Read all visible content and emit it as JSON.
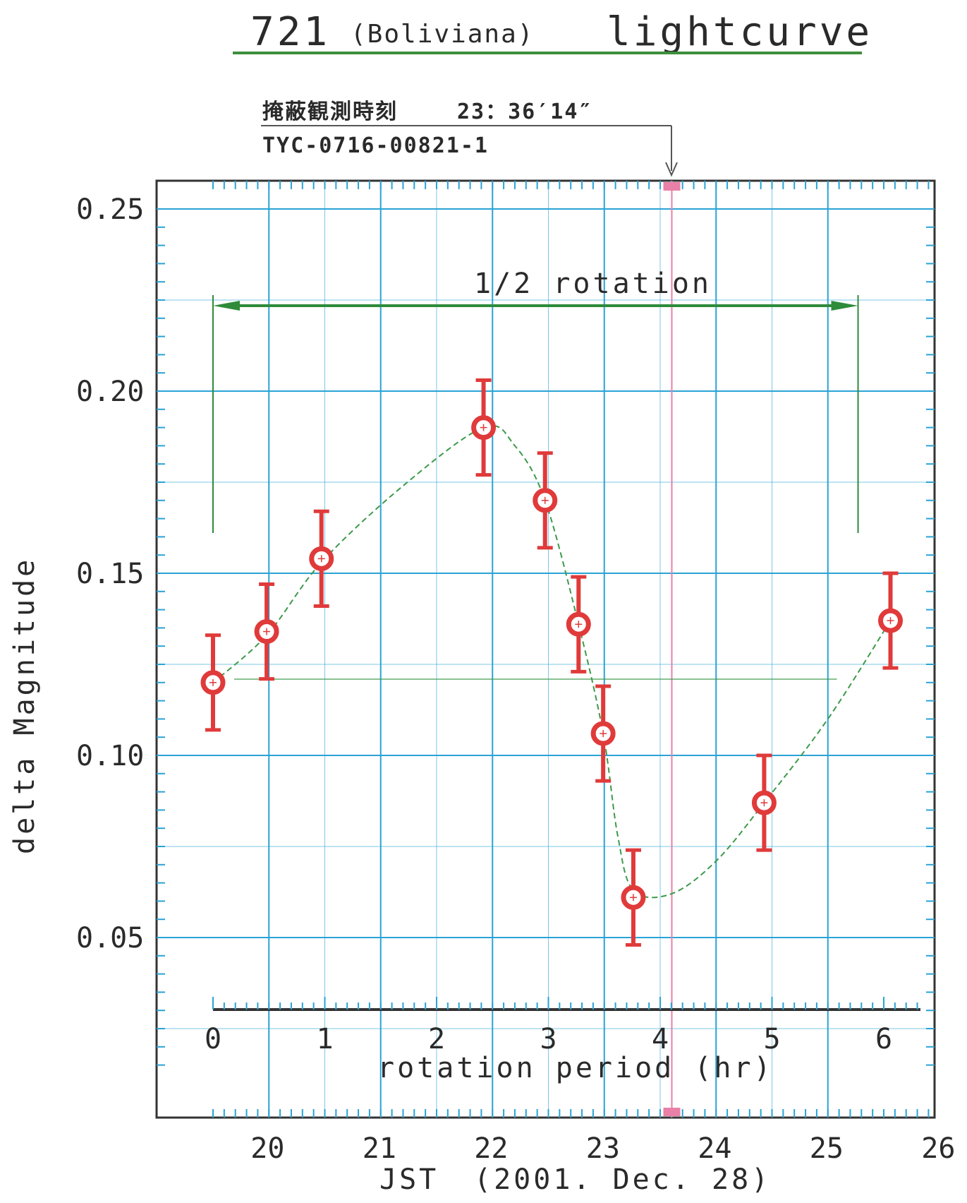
{
  "title": {
    "number": "721",
    "name": "(Boliviana)",
    "word": "lightcurve"
  },
  "annotation": {
    "occultation_label": "掩蔽観測時刻",
    "occultation_time": "23：36′14″",
    "star_id": "TYC-0716-00821-1",
    "rotation_label": "1/2 rotation"
  },
  "colors": {
    "grid": "#2aa3d6",
    "points": "#e03a3a",
    "fit_curve": "#3d9a4a",
    "rotation_arrow": "#2e8b3a",
    "occultation_line": "#e880a8",
    "frame": "#333333"
  },
  "chart_data": {
    "type": "scatter",
    "ylabel": "delta Magnitude",
    "xlabel_bottom": "JST",
    "xlabel_bottom_date": "(2001. Dec. 28)",
    "xlabel_inner": "rotation period (hr)",
    "ylim": [
      0.01,
      0.26
    ],
    "jst_lim": [
      19.5,
      26.0
    ],
    "jst_ticks": [
      "20",
      "21",
      "22",
      "23",
      "24",
      "25",
      "26"
    ],
    "rotation_ticks": [
      "0",
      "1",
      "2",
      "3",
      "4",
      "5",
      "6"
    ],
    "y_ticks": [
      "0.25",
      "0.20",
      "0.15",
      "0.10",
      "0.05"
    ],
    "y_tick_values": [
      0.25,
      0.2,
      0.15,
      0.1,
      0.05
    ],
    "rotation_origin_jst": 19.5,
    "occultation_jst": 23.604,
    "half_rotation_jst": [
      19.5,
      25.27
    ],
    "grid": true,
    "points": [
      {
        "jst": 19.5,
        "y": 0.12,
        "err": 0.013
      },
      {
        "jst": 19.98,
        "y": 0.134,
        "err": 0.013
      },
      {
        "jst": 20.47,
        "y": 0.154,
        "err": 0.013
      },
      {
        "jst": 21.92,
        "y": 0.19,
        "err": 0.013
      },
      {
        "jst": 22.47,
        "y": 0.17,
        "err": 0.013
      },
      {
        "jst": 22.77,
        "y": 0.136,
        "err": 0.013
      },
      {
        "jst": 22.99,
        "y": 0.106,
        "err": 0.013
      },
      {
        "jst": 23.26,
        "y": 0.061,
        "err": 0.013
      },
      {
        "jst": 24.43,
        "y": 0.087,
        "err": 0.013
      },
      {
        "jst": 25.56,
        "y": 0.137,
        "err": 0.013
      }
    ],
    "fit_curve": [
      {
        "jst": 19.5,
        "y": 0.12
      },
      {
        "jst": 19.98,
        "y": 0.133
      },
      {
        "jst": 20.47,
        "y": 0.153
      },
      {
        "jst": 21.2,
        "y": 0.174
      },
      {
        "jst": 21.92,
        "y": 0.19
      },
      {
        "jst": 22.2,
        "y": 0.185
      },
      {
        "jst": 22.47,
        "y": 0.17
      },
      {
        "jst": 22.77,
        "y": 0.136
      },
      {
        "jst": 22.99,
        "y": 0.106
      },
      {
        "jst": 23.12,
        "y": 0.078
      },
      {
        "jst": 23.26,
        "y": 0.063
      },
      {
        "jst": 23.6,
        "y": 0.062
      },
      {
        "jst": 24.0,
        "y": 0.071
      },
      {
        "jst": 24.43,
        "y": 0.087
      },
      {
        "jst": 25.0,
        "y": 0.11
      },
      {
        "jst": 25.56,
        "y": 0.137
      }
    ]
  }
}
